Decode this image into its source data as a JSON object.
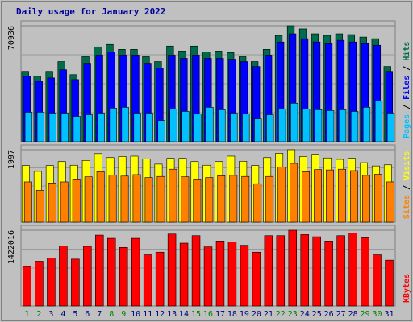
{
  "chart_data": {
    "type": "bar",
    "title": "Daily usage for January 2022",
    "categories": [
      "1",
      "2",
      "3",
      "4",
      "5",
      "6",
      "7",
      "8",
      "9",
      "10",
      "11",
      "12",
      "13",
      "14",
      "15",
      "16",
      "17",
      "18",
      "19",
      "20",
      "21",
      "22",
      "23",
      "24",
      "25",
      "26",
      "27",
      "28",
      "29",
      "30",
      "31"
    ],
    "weekend_categories": [
      "1",
      "2",
      "8",
      "9",
      "15",
      "16",
      "22",
      "23",
      "29",
      "30"
    ],
    "panels": [
      {
        "id": "top",
        "ymax_label": "70936",
        "ylim": [
          0,
          70936
        ],
        "series": [
          {
            "name": "Hits",
            "color": "#006c4c",
            "values": [
              43000,
              40000,
              43000,
              49000,
              41000,
              52000,
              58000,
              59500,
              56500,
              56500,
              52000,
              49000,
              58500,
              55500,
              58500,
              55000,
              55500,
              54500,
              52000,
              49000,
              56500,
              65000,
              70936,
              69000,
              66000,
              65000,
              66000,
              65500,
              64000,
              63000,
              46000
            ]
          },
          {
            "name": "Files",
            "color": "#0000ff",
            "values": [
              40000,
              37000,
              39000,
              44000,
              38000,
              48000,
              53000,
              55000,
              53000,
              53000,
              48000,
              45000,
              53000,
              51000,
              53000,
              51000,
              51000,
              50500,
              49000,
              46000,
              53000,
              61000,
              66000,
              63000,
              61000,
              60000,
              62000,
              61000,
              60000,
              59000,
              43000
            ]
          },
          {
            "name": "Pages",
            "color": "#00c0ff",
            "values": [
              18000,
              18000,
              17500,
              17500,
              15500,
              16500,
              17500,
              20500,
              21000,
              17500,
              17500,
              13000,
              20000,
              18500,
              17000,
              21000,
              19500,
              17500,
              17000,
              14000,
              16500,
              20000,
              23500,
              20000,
              19500,
              19000,
              19500,
              18500,
              21000,
              25000,
              17500
            ]
          }
        ]
      },
      {
        "id": "middle",
        "ymax_label": "1997",
        "ylim": [
          0,
          1997
        ],
        "series": [
          {
            "name": "Visits",
            "color": "#ffff00",
            "values": [
              1560,
              1400,
              1560,
              1670,
              1570,
              1700,
              1890,
              1780,
              1810,
              1820,
              1740,
              1600,
              1760,
              1760,
              1670,
              1570,
              1670,
              1820,
              1680,
              1560,
              1780,
              1900,
              1997,
              1810,
              1870,
              1770,
              1730,
              1760,
              1640,
              1550,
              1580
            ]
          },
          {
            "name": "Sites",
            "color": "#ff8000",
            "values": [
              1110,
              880,
              1080,
              1110,
              1190,
              1250,
              1390,
              1300,
              1270,
              1310,
              1230,
              1260,
              1460,
              1250,
              1190,
              1230,
              1280,
              1290,
              1260,
              1060,
              1260,
              1520,
              1620,
              1390,
              1450,
              1440,
              1460,
              1420,
              1290,
              1320,
              1110
            ]
          }
        ]
      },
      {
        "id": "bottom",
        "ymax_label": "1422016",
        "ylim": [
          0,
          1422016
        ],
        "series": [
          {
            "name": "KBytes",
            "color": "#ff0000",
            "values": [
              740000,
              840000,
              900000,
              1130000,
              880000,
              1120000,
              1330000,
              1270000,
              1100000,
              1270000,
              960000,
              1010000,
              1350000,
              1180000,
              1320000,
              1110000,
              1220000,
              1200000,
              1140000,
              1010000,
              1320000,
              1320000,
              1422016,
              1340000,
              1300000,
              1220000,
              1320000,
              1370000,
              1280000,
              960000,
              860000
            ]
          }
        ]
      }
    ],
    "side_labels": [
      {
        "panel": "top",
        "parts": [
          {
            "text": "Pages",
            "color": "#00c0ff"
          },
          {
            "text": " / ",
            "color": "#000000"
          },
          {
            "text": "Files",
            "color": "#0000ff"
          },
          {
            "text": " / ",
            "color": "#000000"
          },
          {
            "text": "Hits",
            "color": "#006c4c"
          }
        ]
      },
      {
        "panel": "middle",
        "parts": [
          {
            "text": "Sites",
            "color": "#ff8000"
          },
          {
            "text": " / ",
            "color": "#000000"
          },
          {
            "text": "Visits",
            "color": "#ffff00"
          }
        ]
      },
      {
        "panel": "bottom",
        "parts": [
          {
            "text": "KBytes",
            "color": "#ff0000"
          }
        ]
      }
    ],
    "grid": true,
    "colors": {
      "background": "#c0c0c0",
      "plot": "#c0c0c0",
      "title": "#0000a0",
      "weekday_label": "#000080",
      "weekend_label": "#008000"
    }
  }
}
